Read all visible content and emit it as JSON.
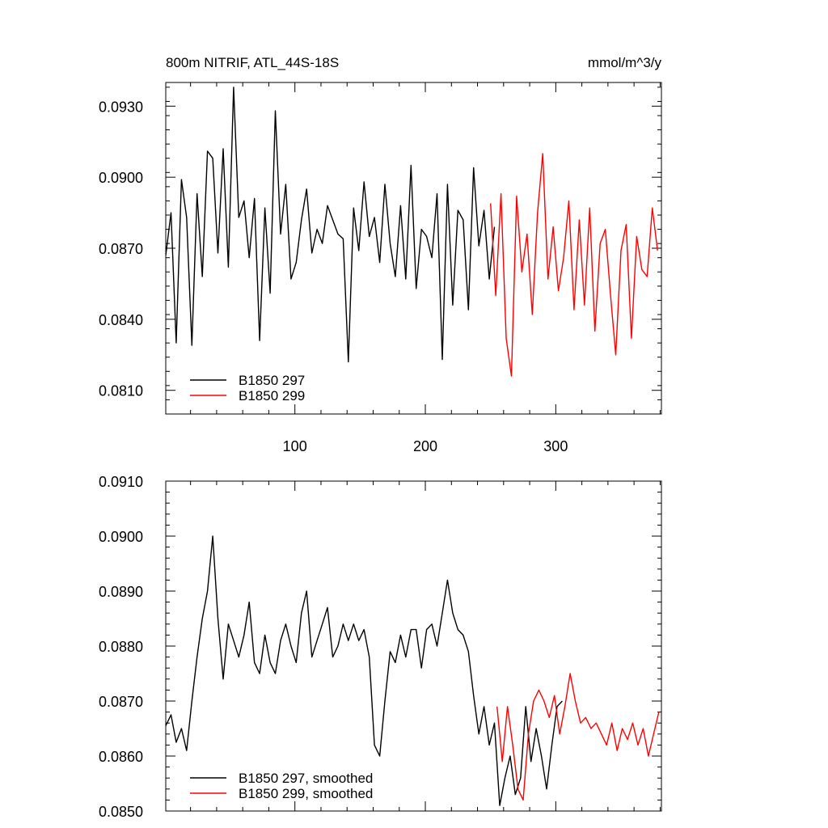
{
  "header": {
    "title": "800m NITRIF, ATL_44S-18S",
    "units": "mmol/m^3/y"
  },
  "colors": {
    "run297": "#000000",
    "run299": "#ff0000"
  },
  "chart_data": [
    {
      "type": "line",
      "title": "800m NITRIF, ATL_44S-18S",
      "units_label": "mmol/m^3/y",
      "xlim": [
        1,
        381
      ],
      "ylim": [
        0.08,
        0.094
      ],
      "x_tick_values": [
        100,
        200,
        300
      ],
      "x_tick_labels": [
        "100",
        "200",
        "300"
      ],
      "y_tick_values": [
        0.081,
        0.084,
        0.087,
        0.09,
        0.093
      ],
      "y_tick_labels": [
        "0.0810",
        "0.0840",
        "0.0870",
        "0.0900",
        "0.0930"
      ],
      "grid": false,
      "legend_position": "bottom-left",
      "series": [
        {
          "name": "B1850 297",
          "color": "#000000",
          "x_start": 1,
          "x_step": 4,
          "values": [
            0.0867,
            0.0885,
            0.083,
            0.0899,
            0.0883,
            0.0829,
            0.0893,
            0.0858,
            0.0911,
            0.0908,
            0.0868,
            0.0912,
            0.0862,
            0.0938,
            0.0883,
            0.089,
            0.0866,
            0.0891,
            0.0831,
            0.0887,
            0.0851,
            0.0928,
            0.0876,
            0.0897,
            0.0857,
            0.0864,
            0.0882,
            0.0895,
            0.0868,
            0.0878,
            0.0872,
            0.0888,
            0.0882,
            0.0876,
            0.0874,
            0.0822,
            0.0887,
            0.0869,
            0.0898,
            0.0875,
            0.0883,
            0.0864,
            0.0897,
            0.0872,
            0.0858,
            0.0888,
            0.0857,
            0.0905,
            0.0853,
            0.0878,
            0.0875,
            0.0866,
            0.0893,
            0.0823,
            0.0897,
            0.0846,
            0.0886,
            0.0882,
            0.0844,
            0.0904,
            0.0871,
            0.0886,
            0.0857,
            0.0879
          ]
        },
        {
          "name": "B1850 299",
          "color": "#ff0000",
          "x_start": 250,
          "x_step": 4,
          "values": [
            0.0889,
            0.085,
            0.0893,
            0.0832,
            0.0816,
            0.0892,
            0.086,
            0.0876,
            0.0842,
            0.0885,
            0.091,
            0.0857,
            0.0879,
            0.0852,
            0.0866,
            0.089,
            0.0844,
            0.0882,
            0.0846,
            0.0887,
            0.0835,
            0.0872,
            0.0878,
            0.085,
            0.0825,
            0.0869,
            0.088,
            0.0832,
            0.0875,
            0.0861,
            0.0858,
            0.0887,
            0.0869
          ]
        }
      ]
    },
    {
      "type": "line",
      "xlim": [
        1,
        381
      ],
      "ylim": [
        0.085,
        0.091
      ],
      "x_tick_values": [
        100,
        200,
        300
      ],
      "y_tick_values": [
        0.085,
        0.086,
        0.087,
        0.088,
        0.089,
        0.09,
        0.091
      ],
      "y_tick_labels": [
        "0.0850",
        "0.0860",
        "0.0870",
        "0.0880",
        "0.0890",
        "0.0900",
        "0.0910"
      ],
      "grid": false,
      "legend_position": "bottom-left",
      "series": [
        {
          "name": "B1850 297, smoothed",
          "color": "#000000",
          "x_start": 1,
          "x_step": 4,
          "values": [
            0.08655,
            0.08675,
            0.08625,
            0.0865,
            0.0861,
            0.087,
            0.0878,
            0.0885,
            0.089,
            0.09,
            0.0885,
            0.0874,
            0.0884,
            0.0881,
            0.0878,
            0.0882,
            0.0888,
            0.0877,
            0.0875,
            0.0882,
            0.0877,
            0.0875,
            0.0881,
            0.0884,
            0.088,
            0.0877,
            0.0886,
            0.089,
            0.0878,
            0.0881,
            0.0884,
            0.0887,
            0.0878,
            0.088,
            0.0884,
            0.0881,
            0.0884,
            0.0881,
            0.0883,
            0.0878,
            0.0862,
            0.086,
            0.087,
            0.0879,
            0.0877,
            0.0882,
            0.0878,
            0.0883,
            0.0883,
            0.0876,
            0.0883,
            0.0884,
            0.088,
            0.0886,
            0.0892,
            0.0886,
            0.0883,
            0.0882,
            0.0879,
            0.0871,
            0.0864,
            0.0869,
            0.0862,
            0.0866,
            0.0851,
            0.0856,
            0.086,
            0.0853,
            0.0856,
            0.0869,
            0.0859,
            0.0865,
            0.086,
            0.0854,
            0.0862,
            0.0869,
            0.087
          ]
        },
        {
          "name": "B1850 299, smoothed",
          "color": "#ff0000",
          "x_start": 255,
          "x_step": 4,
          "values": [
            0.0869,
            0.0859,
            0.0869,
            0.0862,
            0.0854,
            0.0852,
            0.0864,
            0.087,
            0.0872,
            0.087,
            0.0867,
            0.0871,
            0.0864,
            0.0869,
            0.0875,
            0.087,
            0.0866,
            0.0867,
            0.0865,
            0.0866,
            0.0864,
            0.0862,
            0.0866,
            0.0861,
            0.0865,
            0.0863,
            0.0866,
            0.0862,
            0.0865,
            0.086,
            0.0864,
            0.0868
          ]
        }
      ]
    }
  ]
}
